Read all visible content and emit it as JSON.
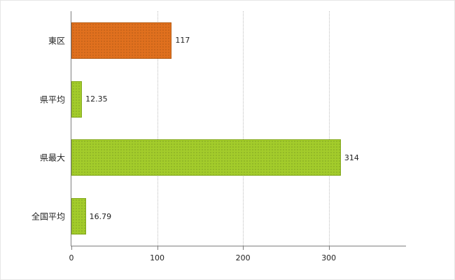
{
  "chart_data": {
    "type": "bar",
    "orientation": "horizontal",
    "title": "",
    "xlabel": "",
    "ylabel": "",
    "categories": [
      "東区",
      "県平均",
      "県最大",
      "全国平均"
    ],
    "values": [
      117,
      12.35,
      314,
      16.79
    ],
    "value_labels": [
      "117",
      "12.35",
      "314",
      "16.79"
    ],
    "bar_fill_colors": [
      "#e0701e",
      "#a3cc2b",
      "#a3cc2b",
      "#a3cc2b"
    ],
    "bar_border_colors": [
      "#b55a12",
      "#83a81d",
      "#83a81d",
      "#83a81d"
    ],
    "xlim": [
      0,
      390
    ],
    "xticks": [
      0,
      100,
      200,
      300
    ],
    "grid": "dotted-vertical",
    "legend": "none",
    "background_color": "#ffffff",
    "axis_color": "#7f7f7f",
    "gridline_color": "#bdbdbd",
    "text_color": "#222222"
  }
}
